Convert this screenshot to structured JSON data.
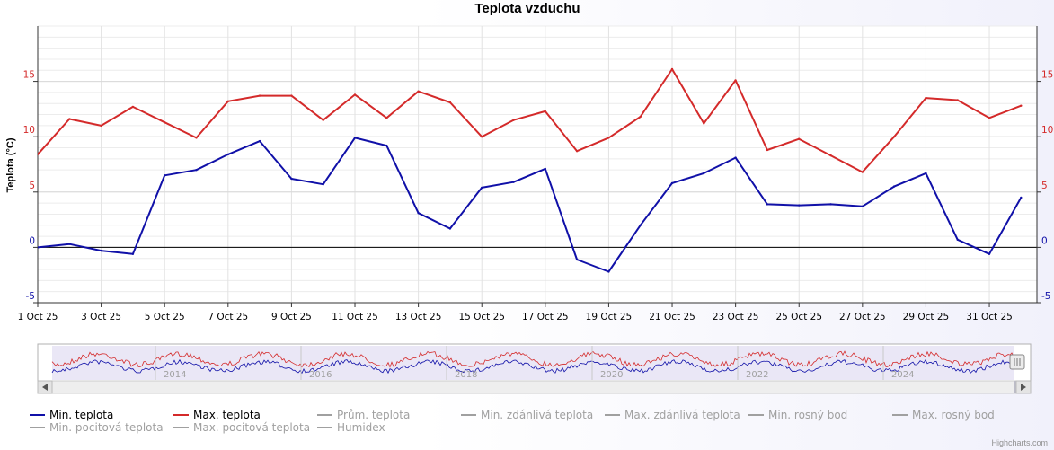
{
  "chart_data": {
    "type": "line",
    "title": "Teplota vzduchu",
    "ylabel": "Teplota (°C)",
    "ylim": [
      -5,
      20
    ],
    "y_ticks": [
      -5,
      0,
      5,
      10,
      15
    ],
    "x_tick_labels": [
      "1 Oct 25",
      "3 Oct 25",
      "5 Oct 25",
      "7 Oct 25",
      "9 Oct 25",
      "11 Oct 25",
      "13 Oct 25",
      "15 Oct 25",
      "17 Oct 25",
      "19 Oct 25",
      "21 Oct 25",
      "23 Oct 25",
      "25 Oct 25",
      "27 Oct 25",
      "29 Oct 25",
      "31 Oct 25"
    ],
    "x": [
      1,
      2,
      3,
      4,
      5,
      6,
      7,
      8,
      9,
      10,
      11,
      12,
      13,
      14,
      15,
      16,
      17,
      18,
      19,
      20,
      21,
      22,
      23,
      24,
      25,
      26,
      27,
      28,
      29,
      30,
      31,
      32
    ],
    "xlim": [
      1,
      32.5
    ],
    "series": [
      {
        "name": "Min. teplota",
        "color": "#1010a8",
        "values": [
          0.0,
          0.3,
          -0.3,
          -0.6,
          6.5,
          7.0,
          8.4,
          9.6,
          6.2,
          5.7,
          9.9,
          9.2,
          3.1,
          1.7,
          5.4,
          5.9,
          7.1,
          -1.1,
          -2.2,
          2.0,
          5.8,
          6.7,
          8.1,
          3.9,
          3.8,
          3.9,
          3.7,
          5.5,
          6.7,
          0.7,
          -0.6,
          4.5
        ]
      },
      {
        "name": "Max. teplota",
        "color": "#d42a2a",
        "values": [
          8.4,
          11.6,
          11.0,
          12.7,
          11.3,
          9.9,
          13.2,
          13.7,
          13.7,
          11.5,
          13.8,
          11.7,
          14.1,
          13.1,
          10.0,
          11.5,
          12.3,
          8.7,
          9.9,
          11.8,
          16.1,
          11.2,
          15.1,
          8.8,
          9.8,
          8.3,
          6.8,
          10.0,
          13.5,
          13.3,
          11.7,
          12.8
        ]
      }
    ],
    "inactive_series": [
      "Prům. teplota",
      "Min. zdánlivá teplota",
      "Max. zdánlivá teplota",
      "Min. rosný bod",
      "Max. rosný bod",
      "Min. pocitová teplota",
      "Max. pocitová teplota",
      "Humidex"
    ],
    "navigator_years": [
      "2014",
      "2016",
      "2018",
      "2020",
      "2022",
      "2024"
    ],
    "grid": true,
    "legend_position": "bottom",
    "credits": "Highcharts.com"
  },
  "colors": {
    "min": "#1010a8",
    "max": "#d42a2a",
    "inactive": "#a0a0a0"
  }
}
